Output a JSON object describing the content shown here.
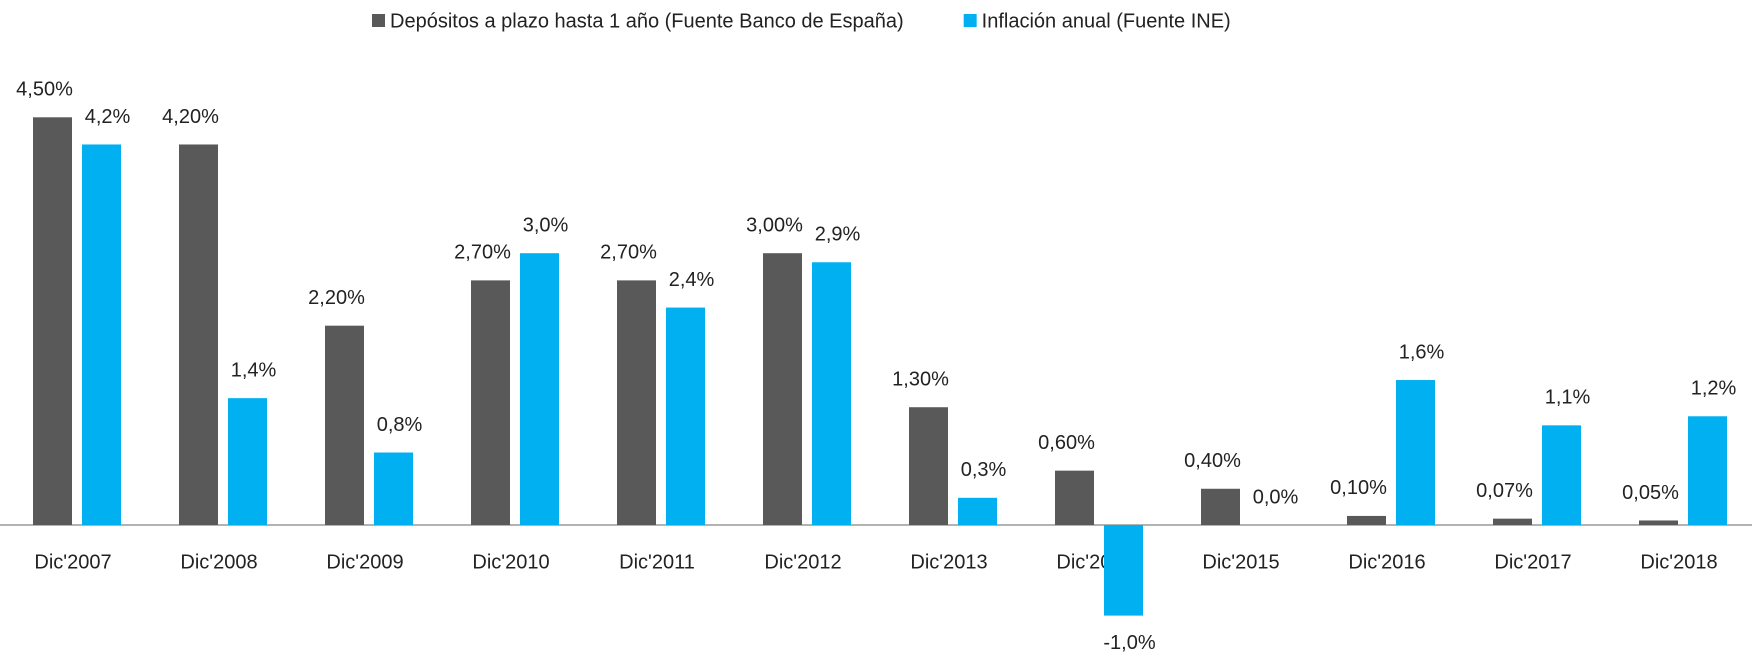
{
  "chart_data": {
    "type": "bar",
    "categories": [
      "Dic'2007",
      "Dic'2008",
      "Dic'2009",
      "Dic'2010",
      "Dic'2011",
      "Dic'2012",
      "Dic'2013",
      "Dic'2014",
      "Dic'2015",
      "Dic'2016",
      "Dic'2017",
      "Dic'2018"
    ],
    "series": [
      {
        "name": "Depósitos a plazo hasta 1 año (Fuente Banco  de España)",
        "color": "#595959",
        "values": [
          4.5,
          4.2,
          2.2,
          2.7,
          2.7,
          3.0,
          1.3,
          0.6,
          0.4,
          0.1,
          0.07,
          0.05
        ],
        "value_labels": [
          "4,50%",
          "4,20%",
          "2,20%",
          "2,70%",
          "2,70%",
          "3,00%",
          "1,30%",
          "0,60%",
          "0,40%",
          "0,10%",
          "0,07%",
          "0,05%"
        ]
      },
      {
        "name": "Inflación anual (Fuente INE)",
        "color": "#00b0f0",
        "values": [
          4.2,
          1.4,
          0.8,
          3.0,
          2.4,
          2.9,
          0.3,
          -1.0,
          0.0,
          1.6,
          1.1,
          1.2
        ],
        "value_labels": [
          "4,2%",
          "1,4%",
          "0,8%",
          "3,0%",
          "2,4%",
          "2,9%",
          "0,3%",
          "-1,0%",
          "0,0%",
          "1,6%",
          "1,1%",
          "1,2%"
        ]
      }
    ],
    "legend": "top"
  }
}
